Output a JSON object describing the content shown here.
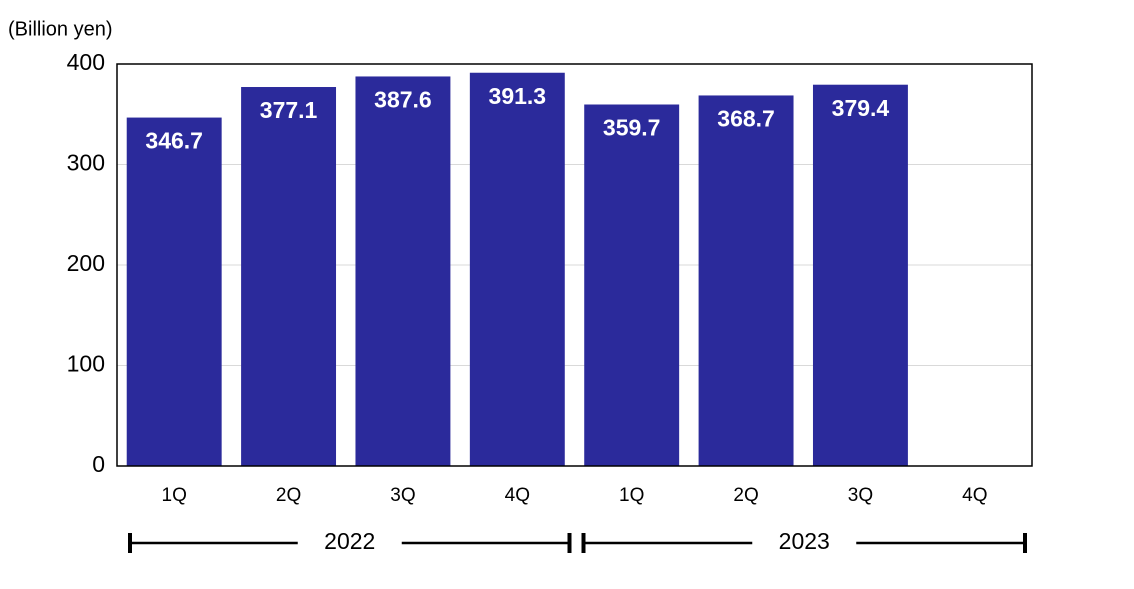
{
  "chart_data": {
    "type": "bar",
    "y_axis_label": "(Billion yen)",
    "categories": [
      "1Q",
      "2Q",
      "3Q",
      "4Q",
      "1Q",
      "2Q",
      "3Q",
      "4Q"
    ],
    "groups": [
      "2022",
      "2023"
    ],
    "values": [
      346.7,
      377.1,
      387.6,
      391.3,
      359.7,
      368.7,
      379.4,
      null
    ],
    "color": "#2b2a9b",
    "ylim": [
      0,
      400
    ],
    "yticks": [
      0,
      100,
      200,
      300,
      400
    ],
    "grid": true
  }
}
